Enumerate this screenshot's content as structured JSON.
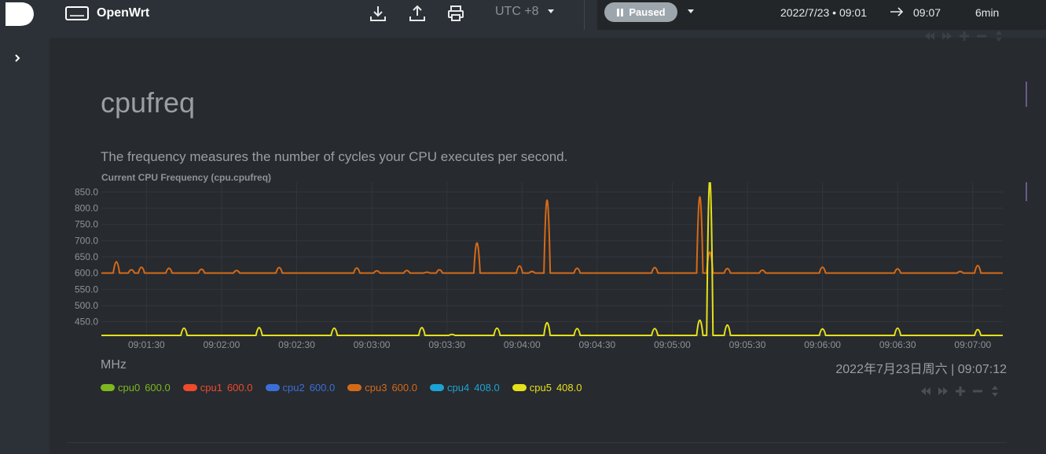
{
  "app": {
    "name": "OpenWrt"
  },
  "toolbar": {
    "timezone": "UTC +8",
    "status": "Paused",
    "range_from": "2022/7/23 • 09:01",
    "range_to": "09:07",
    "duration": "6min"
  },
  "section": {
    "title": "cpufreq",
    "description": "The frequency measures the number of cycles your CPU executes per second."
  },
  "chart_meta": {
    "units": "MHz",
    "timestamp": "2022年7月23日周六 | 09:07:12"
  },
  "legend": [
    {
      "name": "cpu0",
      "value": "600.0",
      "color": "#7cb81e"
    },
    {
      "name": "cpu1",
      "value": "600.0",
      "color": "#ee4a2b"
    },
    {
      "name": "cpu2",
      "value": "600.0",
      "color": "#3b6fd6"
    },
    {
      "name": "cpu3",
      "value": "600.0",
      "color": "#d46a17"
    },
    {
      "name": "cpu4",
      "value": "408.0",
      "color": "#1ba3d3"
    },
    {
      "name": "cpu5",
      "value": "408.0",
      "color": "#e5e01a"
    }
  ],
  "icons": {
    "logo": "openwrt-logo",
    "brand": "monitor-icon",
    "download": "download-icon",
    "upload": "upload-icon",
    "print": "print-icon",
    "expand": "chevron-right-icon"
  },
  "chart_data": {
    "type": "line",
    "title": "Current CPU Frequency (cpu.cpufreq)",
    "xlabel": "",
    "ylabel": "MHz",
    "ylim": [
      408,
      880
    ],
    "yticks": [
      450.0,
      500.0,
      550.0,
      600.0,
      650.0,
      700.0,
      750.0,
      800.0,
      850.0
    ],
    "xlim": [
      "09:01:12",
      "09:07:12"
    ],
    "xticks": [
      "09:01:30",
      "09:02:00",
      "09:02:30",
      "09:03:00",
      "09:03:30",
      "09:04:00",
      "09:04:30",
      "09:05:00",
      "09:05:30",
      "09:06:00",
      "09:06:30",
      "09:07:00"
    ],
    "series": [
      {
        "name": "cpu3",
        "color": "#d46a17",
        "base": 600,
        "peaks": [
          [
            "09:01:18",
            635
          ],
          [
            "09:01:24",
            610
          ],
          [
            "09:01:28",
            618
          ],
          [
            "09:01:39",
            615
          ],
          [
            "09:01:52",
            612
          ],
          [
            "09:02:06",
            608
          ],
          [
            "09:02:23",
            617
          ],
          [
            "09:02:54",
            616
          ],
          [
            "09:03:02",
            607
          ],
          [
            "09:03:14",
            608
          ],
          [
            "09:03:22",
            603
          ],
          [
            "09:03:27",
            610
          ],
          [
            "09:03:42",
            693
          ],
          [
            "09:03:59",
            622
          ],
          [
            "09:04:04",
            605
          ],
          [
            "09:04:10",
            825
          ],
          [
            "09:04:22",
            615
          ],
          [
            "09:04:53",
            617
          ],
          [
            "09:05:11",
            835
          ],
          [
            "09:05:15",
            665
          ],
          [
            "09:05:22",
            614
          ],
          [
            "09:05:36",
            609
          ],
          [
            "09:06:00",
            618
          ],
          [
            "09:06:30",
            613
          ],
          [
            "09:06:55",
            605
          ],
          [
            "09:07:02",
            623
          ]
        ]
      },
      {
        "name": "cpu5",
        "color": "#e5e01a",
        "base": 408,
        "peaks": [
          [
            "09:01:45",
            430
          ],
          [
            "09:02:15",
            432
          ],
          [
            "09:02:45",
            430
          ],
          [
            "09:03:20",
            432
          ],
          [
            "09:03:32",
            411
          ],
          [
            "09:03:50",
            430
          ],
          [
            "09:04:10",
            447
          ],
          [
            "09:04:22",
            429
          ],
          [
            "09:04:53",
            429
          ],
          [
            "09:05:11",
            455
          ],
          [
            "09:05:15",
            888
          ],
          [
            "09:05:22",
            440
          ],
          [
            "09:06:00",
            428
          ],
          [
            "09:06:30",
            430
          ],
          [
            "09:07:02",
            426
          ]
        ]
      }
    ]
  }
}
